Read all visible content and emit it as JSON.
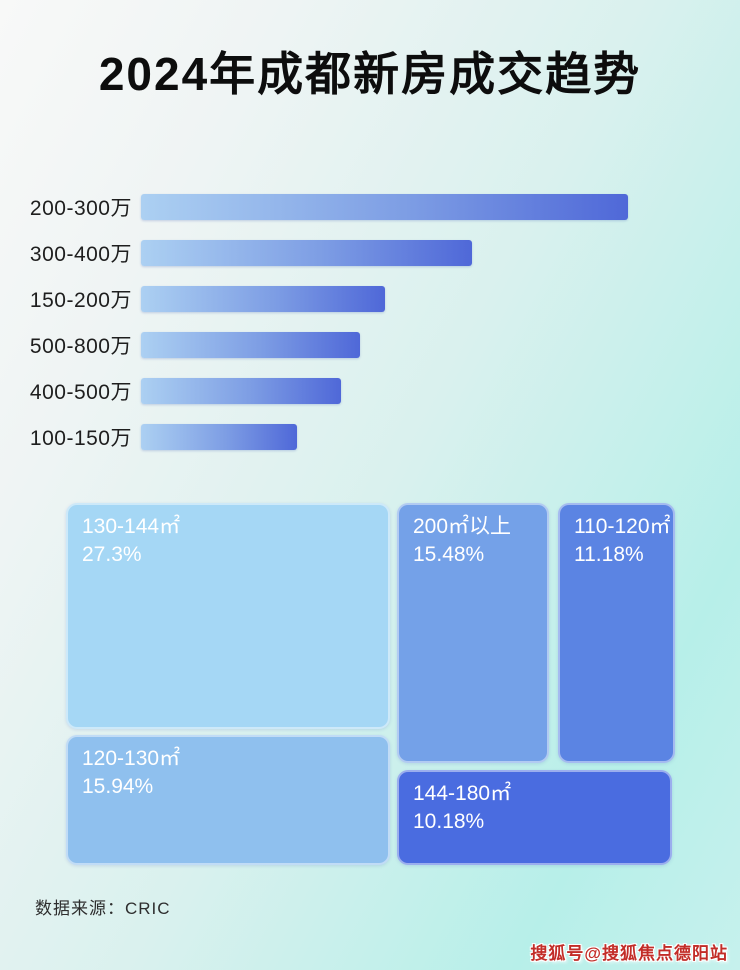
{
  "title": "2024年成都新房成交趋势",
  "colors": {
    "background_top_left": "#f8f9f8",
    "background_bottom_right": "#b7efe9",
    "bar_gradient_start": "#acd0f2",
    "bar_gradient_end": "#4f68d8",
    "title_text": "#0d0d0d",
    "bar_label_text": "#1e1e1e",
    "tile_text": "#ffffff",
    "watermark_red": "#c22d28"
  },
  "bar_chart": {
    "rows": [
      {
        "label": "200-300万",
        "width_pct": "100%"
      },
      {
        "label": "300-400万",
        "width_pct": "68%"
      },
      {
        "label": "150-200万",
        "width_pct": "50%"
      },
      {
        "label": "500-800万",
        "width_pct": "45%"
      },
      {
        "label": "400-500万",
        "width_pct": "41%"
      },
      {
        "label": "100-150万",
        "width_pct": "32%"
      }
    ]
  },
  "treemap": {
    "tiles": [
      {
        "label": "130-144㎡",
        "value": "27.3%",
        "color": "#a5d7f5"
      },
      {
        "label": "200㎡以上",
        "value": "15.48%",
        "color": "#74a1e8"
      },
      {
        "label": "110-120㎡",
        "value": "11.18%",
        "color": "#5b84e3"
      },
      {
        "label": "120-130㎡",
        "value": "15.94%",
        "color": "#8fc0ee"
      },
      {
        "label": "144-180㎡",
        "value": "10.18%",
        "color": "#4a6ce0"
      }
    ]
  },
  "footer": {
    "source": "数据来源：CRIC"
  },
  "watermark": "搜狐号@搜狐焦点德阳站",
  "chart_data": [
    {
      "type": "bar",
      "orientation": "horizontal",
      "title": "2024年成都新房成交趋势",
      "categories": [
        "200-300万",
        "300-400万",
        "150-200万",
        "500-800万",
        "400-500万",
        "100-150万"
      ],
      "values": null,
      "relative_lengths_pct": [
        100,
        68,
        50,
        45,
        41,
        32
      ],
      "note": "数值未标注，条形长度为相对比例（最长条=100）",
      "grid": false,
      "legend": false,
      "bar_color_gradient": [
        "#acd0f2",
        "#4f68d8"
      ]
    },
    {
      "type": "treemap",
      "items": [
        {
          "name": "130-144㎡",
          "value_pct": 27.3,
          "color": "#a5d7f5"
        },
        {
          "name": "200㎡以上",
          "value_pct": 15.48,
          "color": "#74a1e8"
        },
        {
          "name": "110-120㎡",
          "value_pct": 11.18,
          "color": "#5b84e3"
        },
        {
          "name": "120-130㎡",
          "value_pct": 15.94,
          "color": "#8fc0ee"
        },
        {
          "name": "144-180㎡",
          "value_pct": 10.18,
          "color": "#4a6ce0"
        }
      ],
      "legend": false
    }
  ]
}
